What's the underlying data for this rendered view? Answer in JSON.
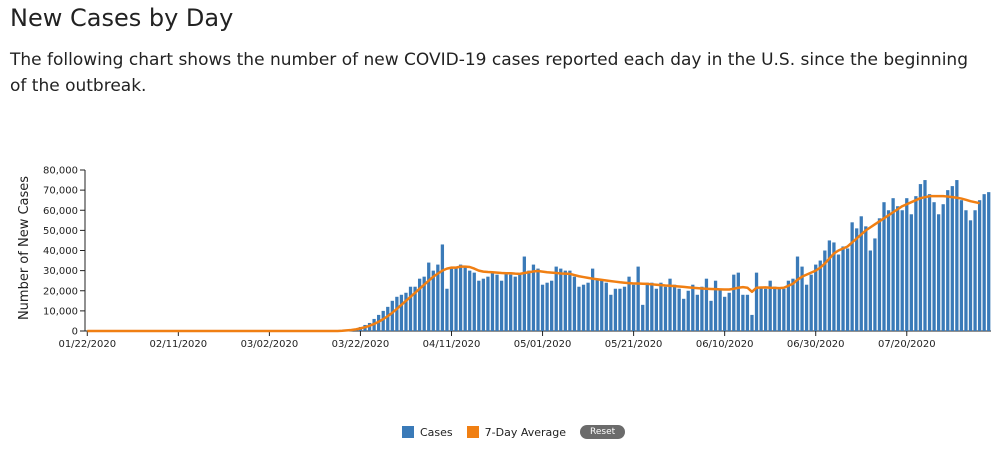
{
  "page": {
    "title": "New Cases by Day",
    "description": "The following chart shows the number of new COVID-19 cases reported each day in the U.S. since the beginning of the outbreak."
  },
  "legend": {
    "cases_label": "Cases",
    "average_label": "7-Day Average",
    "reset_label": "Reset"
  },
  "colors": {
    "cases": "#3a7ab8",
    "average": "#f07f13",
    "axis": "#222222"
  },
  "chart_data": {
    "type": "bar",
    "ylabel": "Number of New Cases",
    "ylim": [
      0,
      80000
    ],
    "yticks": [
      "0",
      "10,000",
      "20,000",
      "30,000",
      "40,000",
      "50,000",
      "60,000",
      "70,000",
      "80,000"
    ],
    "xticks": [
      "01/22/2020",
      "02/11/2020",
      "03/02/2020",
      "03/22/2020",
      "04/11/2020",
      "05/01/2020",
      "05/21/2020",
      "06/10/2020",
      "06/30/2020",
      "07/20/2020"
    ],
    "start_date": "01/22/2020",
    "grid": false,
    "legend_position": "bottom",
    "series": [
      {
        "name": "Cases",
        "type": "bar",
        "values": [
          0,
          0,
          0,
          0,
          0,
          0,
          0,
          0,
          0,
          0,
          0,
          0,
          0,
          0,
          0,
          0,
          0,
          0,
          0,
          0,
          0,
          0,
          0,
          0,
          0,
          0,
          0,
          0,
          0,
          0,
          0,
          0,
          0,
          0,
          0,
          0,
          0,
          0,
          0,
          0,
          0,
          0,
          0,
          0,
          0,
          0,
          0,
          0,
          0,
          0,
          0,
          0,
          0,
          0,
          0,
          0,
          100,
          200,
          500,
          1000,
          2000,
          3000,
          4000,
          6000,
          8000,
          10000,
          12000,
          15000,
          17000,
          18000,
          19000,
          22000,
          22000,
          26000,
          27000,
          34000,
          30000,
          33000,
          43000,
          21000,
          31000,
          32000,
          33000,
          32000,
          30000,
          29000,
          25000,
          26000,
          27000,
          29000,
          28000,
          25000,
          29000,
          28000,
          27000,
          28000,
          37000,
          30000,
          33000,
          31000,
          23000,
          24000,
          25000,
          32000,
          31000,
          30000,
          30000,
          27000,
          22000,
          23000,
          24000,
          31000,
          26000,
          25000,
          24000,
          18000,
          21000,
          21000,
          22000,
          27000,
          23000,
          32000,
          13000,
          24000,
          24000,
          21000,
          24000,
          22000,
          26000,
          23000,
          21000,
          16000,
          20000,
          23000,
          18000,
          22000,
          26000,
          15000,
          25000,
          21000,
          17000,
          19000,
          28000,
          29000,
          18000,
          18000,
          8000,
          29000,
          22000,
          21000,
          25000,
          22000,
          21000,
          21000,
          25000,
          26000,
          37000,
          32000,
          23000,
          28000,
          33000,
          35000,
          40000,
          45000,
          44000,
          38000,
          42000,
          41000,
          54000,
          51000,
          57000,
          52000,
          40000,
          46000,
          56000,
          64000,
          60000,
          66000,
          62000,
          60000,
          66000,
          58000,
          67000,
          73000,
          75000,
          68000,
          64000,
          58000,
          63000,
          70000,
          72000,
          75000,
          65000,
          60000,
          55000,
          60000,
          65000,
          68000,
          69000
        ]
      },
      {
        "name": "7-Day Average",
        "type": "line",
        "values": [
          0,
          0,
          0,
          0,
          0,
          0,
          0,
          0,
          0,
          0,
          0,
          0,
          0,
          0,
          0,
          0,
          0,
          0,
          0,
          0,
          0,
          0,
          0,
          0,
          0,
          0,
          0,
          0,
          0,
          0,
          0,
          0,
          0,
          0,
          0,
          0,
          0,
          0,
          0,
          0,
          0,
          0,
          0,
          0,
          0,
          0,
          0,
          0,
          0,
          0,
          0,
          0,
          0,
          0,
          0,
          0,
          100,
          300,
          500,
          800,
          1300,
          1900,
          2600,
          3500,
          4600,
          5900,
          7400,
          9100,
          11000,
          13000,
          15000,
          17000,
          19000,
          21000,
          23000,
          25000,
          27000,
          28500,
          30000,
          31000,
          31500,
          31500,
          32000,
          32000,
          31800,
          31000,
          30000,
          29500,
          29300,
          29200,
          29000,
          28800,
          28700,
          28700,
          28500,
          28400,
          28800,
          29200,
          29600,
          29800,
          29500,
          29200,
          29000,
          28800,
          28600,
          28500,
          28400,
          27800,
          27200,
          26800,
          26400,
          26000,
          25700,
          25400,
          25100,
          24800,
          24500,
          24200,
          24000,
          23800,
          23600,
          23600,
          23500,
          23400,
          23200,
          23000,
          22800,
          22600,
          22500,
          22300,
          22100,
          21900,
          21700,
          21500,
          21300,
          21100,
          21000,
          20900,
          20800,
          20700,
          20600,
          20600,
          21000,
          21500,
          21800,
          21500,
          19500,
          21500,
          21600,
          21700,
          21500,
          21400,
          21300,
          21500,
          22500,
          23500,
          25500,
          27000,
          28000,
          29000,
          30000,
          31500,
          33500,
          36000,
          38500,
          40000,
          41000,
          42000,
          44000,
          46000,
          48000,
          50000,
          51500,
          53000,
          54500,
          56000,
          57500,
          59000,
          60500,
          62000,
          63000,
          64000,
          65000,
          66000,
          66500,
          67000,
          67000,
          67000,
          67000,
          66800,
          66500,
          66200,
          65800,
          65200,
          64500,
          64000,
          63500
        ]
      }
    ]
  }
}
